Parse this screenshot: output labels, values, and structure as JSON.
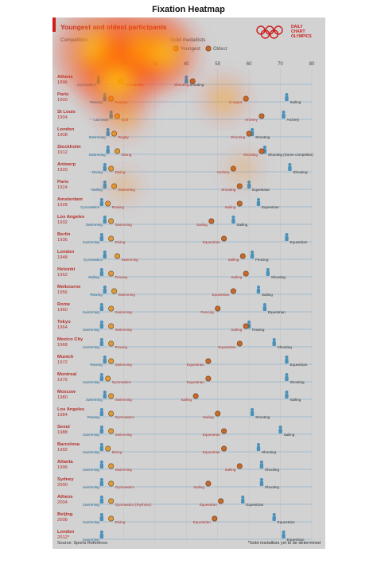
{
  "figure_title": "Fixation Heatmap",
  "infographic": {
    "title": "Youngest and oldest participants",
    "competitors_label": "Competitors",
    "gold_label": "Gold medallists",
    "legend_youngest": "Youngest",
    "legend_oldest": "Oldest",
    "brand_lines": [
      "DAILY",
      "CHART",
      "OLYMPICS"
    ],
    "source": "Source: Sports Reference",
    "footnote": "*Gold medallists yet to be determined"
  },
  "colors": {
    "background": "#d2d2d2",
    "gridline": "#8fb4cf",
    "competitor": "#4a90b8",
    "youngest_gold": "#e09a3a",
    "oldest_gold": "#c56a2a",
    "label_red": "#b5312b",
    "label_dark": "#333333",
    "accent_red": "#cc1f1f"
  },
  "chart_data": {
    "type": "scatter",
    "title": "Youngest and oldest participants",
    "xlabel": "",
    "ylabel": "",
    "xlim": [
      10,
      80
    ],
    "xticks": [
      20,
      30,
      40,
      50,
      60,
      70,
      80
    ],
    "grid": true,
    "games": [
      {
        "city": "Athens",
        "year": "1896",
        "young_gold": 19,
        "young_gold_sport": "Gymnastics",
        "young_comp": 12,
        "young_comp_sport": "Gymnastics",
        "old_gold": 42,
        "old_gold_sport": "Shooting",
        "old_comp": 40,
        "old_comp_sport": "Shooting"
      },
      {
        "city": "Paris",
        "year": "1900",
        "young_gold": 16,
        "young_gold_sport": "Rowing",
        "young_comp": 14,
        "young_comp_sport": "Rowing",
        "old_gold": 59,
        "old_gold_sport": "Croquet",
        "old_comp": 72,
        "old_comp_sport": "Sailing"
      },
      {
        "city": "St Louis",
        "year": "1904",
        "young_gold": 18,
        "young_gold_sport": "Golf",
        "young_comp": 16,
        "young_comp_sport": "Lacrosse",
        "old_gold": 64,
        "old_gold_sport": "Archery",
        "old_comp": 71,
        "old_comp_sport": "Archery"
      },
      {
        "city": "London",
        "year": "1908",
        "young_gold": 17,
        "young_gold_sport": "Rugby",
        "young_comp": 15,
        "young_comp_sport": "Swimming",
        "old_gold": 60,
        "old_gold_sport": "Shooting",
        "old_comp": 61,
        "old_comp_sport": "Shooting"
      },
      {
        "city": "Stockholm",
        "year": "1912",
        "young_gold": 18,
        "young_gold_sport": "Diving",
        "young_comp": 15,
        "young_comp_sport": "Swimming",
        "old_gold": 64,
        "old_gold_sport": "Shooting",
        "old_comp": 65,
        "old_comp_sport": "Shooting (Some competitor)"
      },
      {
        "city": "Antwerp",
        "year": "1920",
        "young_gold": 16,
        "young_gold_sport": "Diving",
        "young_comp": 14,
        "young_comp_sport": "Diving",
        "old_gold": 55,
        "old_gold_sport": "Archery",
        "old_comp": 73,
        "old_comp_sport": "Shooting"
      },
      {
        "city": "Paris",
        "year": "1924",
        "young_gold": 17,
        "young_gold_sport": "Swimming",
        "young_comp": 14,
        "young_comp_sport": "Sailing",
        "old_gold": 57,
        "old_gold_sport": "Shooting",
        "old_comp": 60,
        "old_comp_sport": "Equestrian"
      },
      {
        "city": "Amsterdam",
        "year": "1928",
        "young_gold": 15,
        "young_gold_sport": "Rowing",
        "young_comp": 13,
        "young_comp_sport": "Gymnastics",
        "old_gold": 57,
        "old_gold_sport": "Sailing",
        "old_comp": 63,
        "old_comp_sport": "Equestrian"
      },
      {
        "city": "Los Angeles",
        "year": "1932",
        "young_gold": 16,
        "young_gold_sport": "Swimming",
        "young_comp": 14,
        "young_comp_sport": "Swimming",
        "old_gold": 48,
        "old_gold_sport": "Sailing",
        "old_comp": 55,
        "old_comp_sport": "Sailing"
      },
      {
        "city": "Berlin",
        "year": "1936",
        "young_gold": 16,
        "young_gold_sport": "Diving",
        "young_comp": 13,
        "young_comp_sport": "Swimming",
        "old_gold": 52,
        "old_gold_sport": "Equestrian",
        "old_comp": 72,
        "old_comp_sport": "Equestrian"
      },
      {
        "city": "London",
        "year": "1948",
        "young_gold": 18,
        "young_gold_sport": "Swimming",
        "young_comp": 14,
        "young_comp_sport": "Gymnastics",
        "old_gold": 58,
        "old_gold_sport": "Sailing",
        "old_comp": 61,
        "old_comp_sport": "Fencing"
      },
      {
        "city": "Helsinki",
        "year": "1952",
        "young_gold": 16,
        "young_gold_sport": "Rowing",
        "young_comp": 13,
        "young_comp_sport": "Sailing",
        "old_gold": 59,
        "old_gold_sport": "Sailing",
        "old_comp": 66,
        "old_comp_sport": "Shooting"
      },
      {
        "city": "Melbourne",
        "year": "1956",
        "young_gold": 17,
        "young_gold_sport": "Swimming",
        "young_comp": 14,
        "young_comp_sport": "Rowing",
        "old_gold": 55,
        "old_gold_sport": "Equestrian",
        "old_comp": 63,
        "old_comp_sport": "Sailing"
      },
      {
        "city": "Rome",
        "year": "1960",
        "young_gold": 16,
        "young_gold_sport": "Swimming",
        "young_comp": 13,
        "young_comp_sport": "Swimming",
        "old_gold": 50,
        "old_gold_sport": "Fencing",
        "old_comp": 65,
        "old_comp_sport": "Equestrian"
      },
      {
        "city": "Tokyo",
        "year": "1964",
        "young_gold": 16,
        "young_gold_sport": "Swimming",
        "young_comp": 13,
        "young_comp_sport": "Swimming",
        "old_gold": 59,
        "old_gold_sport": "Sailing",
        "old_comp": 60,
        "old_comp_sport": "Rowing"
      },
      {
        "city": "Mexico City",
        "year": "1968",
        "young_gold": 16,
        "young_gold_sport": "Rowing",
        "young_comp": 13,
        "young_comp_sport": "Swimming",
        "old_gold": 57,
        "old_gold_sport": "Equestrian",
        "old_comp": 68,
        "old_comp_sport": "Shooting"
      },
      {
        "city": "Munich",
        "year": "1972",
        "young_gold": 16,
        "young_gold_sport": "Swimming",
        "young_comp": 14,
        "young_comp_sport": "Rowing",
        "old_gold": 47,
        "old_gold_sport": "Equestrian",
        "old_comp": 72,
        "old_comp_sport": "Equestrian"
      },
      {
        "city": "Montreal",
        "year": "1976",
        "young_gold": 15,
        "young_gold_sport": "Gymnastics",
        "young_comp": 13,
        "young_comp_sport": "Swimming",
        "old_gold": 47,
        "old_gold_sport": "Equestrian",
        "old_comp": 72,
        "old_comp_sport": "Shooting"
      },
      {
        "city": "Moscow",
        "year": "1980",
        "young_gold": 16,
        "young_gold_sport": "Swimming",
        "young_comp": 14,
        "young_comp_sport": "Swimming",
        "old_gold": 43,
        "old_gold_sport": "Sailing",
        "old_comp": 72,
        "old_comp_sport": "Sailing"
      },
      {
        "city": "Los Angeles",
        "year": "1984",
        "young_gold": 16,
        "young_gold_sport": "Gymnastics",
        "young_comp": 13,
        "young_comp_sport": "Rowing",
        "old_gold": 50,
        "old_gold_sport": "Sailing",
        "old_comp": 61,
        "old_comp_sport": "Shooting"
      },
      {
        "city": "Seoul",
        "year": "1988",
        "young_gold": 16,
        "young_gold_sport": "Swimming",
        "young_comp": 13,
        "young_comp_sport": "Swimming",
        "old_gold": 52,
        "old_gold_sport": "Equestrian",
        "old_comp": 70,
        "old_comp_sport": "Sailing"
      },
      {
        "city": "Barcelona",
        "year": "1992",
        "young_gold": 15,
        "young_gold_sport": "Diving",
        "young_comp": 13,
        "young_comp_sport": "Swimming",
        "old_gold": 52,
        "old_gold_sport": "Equestrian",
        "old_comp": 63,
        "old_comp_sport": "Shooting"
      },
      {
        "city": "Atlanta",
        "year": "1996",
        "young_gold": 16,
        "young_gold_sport": "Swimming",
        "young_comp": 13,
        "young_comp_sport": "Swimming",
        "old_gold": 57,
        "old_gold_sport": "Sailing",
        "old_comp": 64,
        "old_comp_sport": "Shooting"
      },
      {
        "city": "Sydney",
        "year": "2000",
        "young_gold": 16,
        "young_gold_sport": "Gymnastics",
        "young_comp": 13,
        "young_comp_sport": "Swimming",
        "old_gold": 47,
        "old_gold_sport": "Sailing",
        "old_comp": 64,
        "old_comp_sport": "Shooting"
      },
      {
        "city": "Athens",
        "year": "2004",
        "young_gold": 16,
        "young_gold_sport": "Gymnastics (rhythmic)",
        "young_comp": 13,
        "young_comp_sport": "Swimming",
        "old_gold": 51,
        "old_gold_sport": "Equestrian",
        "old_comp": 58,
        "old_comp_sport": "Equestrian"
      },
      {
        "city": "Beijing",
        "year": "2008",
        "young_gold": 16,
        "young_gold_sport": "Diving",
        "young_comp": 13,
        "young_comp_sport": "Swimming",
        "old_gold": 49,
        "old_gold_sport": "Equestrian",
        "old_comp": 68,
        "old_comp_sport": "Equestrian"
      },
      {
        "city": "London",
        "year": "2012*",
        "young_gold": null,
        "young_gold_sport": "",
        "young_comp": 13,
        "young_comp_sport": "Swimming",
        "old_gold": null,
        "old_gold_sport": "",
        "old_comp": 71,
        "old_comp_sport": "Equestrian"
      }
    ],
    "heatmap_hotspots": [
      {
        "label": "legend",
        "x": 13,
        "row": 0,
        "intensity": 1.0
      },
      {
        "label": "title",
        "x": 26,
        "row": 0,
        "intensity": 0.95
      },
      {
        "label": "header",
        "x": 18,
        "row": 1,
        "intensity": 0.8
      },
      {
        "label": "header",
        "x": 33,
        "row": 0,
        "intensity": 0.7
      },
      {
        "label": "early games",
        "x": 20,
        "row": 3,
        "intensity": 0.4
      },
      {
        "label": "early games",
        "x": 52,
        "row": 2,
        "intensity": 0.4
      },
      {
        "label": "upper middle",
        "x": 20,
        "row": 7,
        "intensity": 0.25
      },
      {
        "label": "upper middle",
        "x": 58,
        "row": 6,
        "intensity": 0.25
      }
    ]
  }
}
